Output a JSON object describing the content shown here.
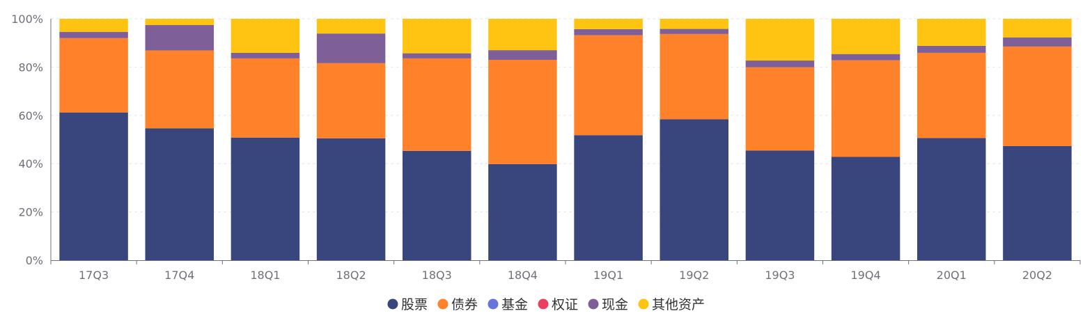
{
  "chart_data": {
    "type": "bar",
    "stacked": true,
    "normalized_percent": true,
    "categories": [
      "17Q3",
      "17Q4",
      "18Q1",
      "18Q2",
      "18Q3",
      "18Q4",
      "19Q1",
      "19Q2",
      "19Q3",
      "19Q4",
      "20Q1",
      "20Q2"
    ],
    "series": [
      {
        "name": "股票",
        "color": "#39467e",
        "values": [
          61.2,
          54.6,
          50.8,
          50.5,
          45.3,
          39.8,
          51.8,
          58.4,
          45.4,
          42.8,
          50.6,
          47.3
        ]
      },
      {
        "name": "债券",
        "color": "#ff812a",
        "values": [
          30.8,
          32.3,
          32.8,
          31.1,
          38.3,
          43.2,
          41.4,
          35.3,
          34.5,
          40.0,
          35.3,
          41.2
        ]
      },
      {
        "name": "基金",
        "color": "#6475dd",
        "values": [
          0,
          0,
          0,
          0,
          0,
          0,
          0,
          0,
          0,
          0,
          0,
          0
        ]
      },
      {
        "name": "权证",
        "color": "#ec3f60",
        "values": [
          0,
          0,
          0,
          0,
          0,
          0,
          0,
          0,
          0,
          0,
          0,
          0
        ]
      },
      {
        "name": "现金",
        "color": "#7e5f98",
        "values": [
          2.6,
          10.5,
          2.3,
          12.3,
          2.1,
          4.0,
          2.5,
          2.1,
          2.8,
          2.6,
          2.9,
          3.8
        ]
      },
      {
        "name": "其他资产",
        "color": "#ffc412",
        "values": [
          5.4,
          2.6,
          14.1,
          6.1,
          14.3,
          13.0,
          4.3,
          4.2,
          17.3,
          14.6,
          11.2,
          7.7
        ]
      }
    ],
    "ylim": [
      0,
      100
    ],
    "yticks": [
      "0%",
      "20%",
      "40%",
      "60%",
      "80%",
      "100%"
    ],
    "xlabel": "",
    "ylabel": "",
    "title": "",
    "grid": "horizontal-dashed",
    "legend_position": "bottom-center"
  }
}
